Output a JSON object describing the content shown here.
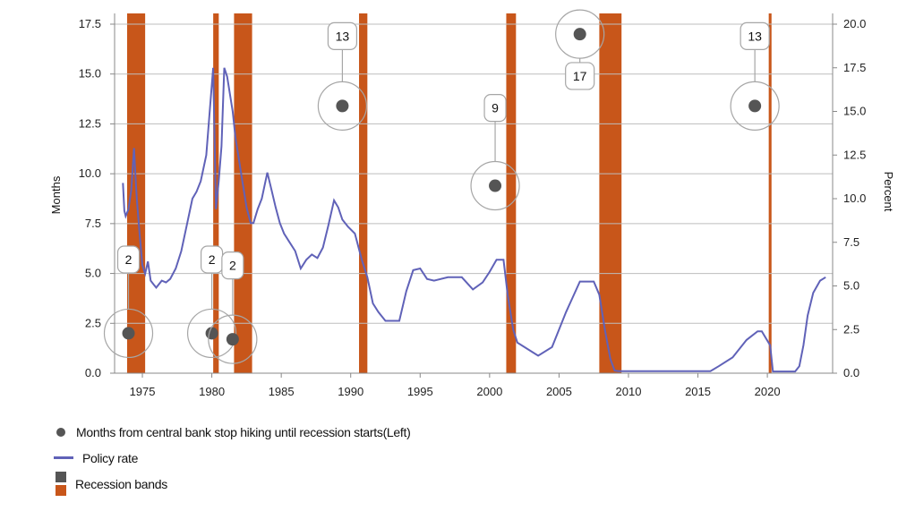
{
  "chart_data": {
    "type": "line",
    "title": "",
    "x_ticks": [
      "1975",
      "1980",
      "1985",
      "1990",
      "1995",
      "2000",
      "2005",
      "2010",
      "2015",
      "2020"
    ],
    "xlim": [
      1973.0,
      2024.7
    ],
    "ylabel_left": "Months",
    "ylim_left": [
      0,
      17.5
    ],
    "yticks_left": [
      "0.0",
      "2.5",
      "5.0",
      "7.5",
      "10.0",
      "12.5",
      "15.0",
      "17.5"
    ],
    "ylabel_right": "Percent",
    "ylim_right": [
      0,
      20
    ],
    "yticks_right": [
      "0.0",
      "2.5",
      "5.0",
      "7.5",
      "10.0",
      "12.5",
      "15.0",
      "17.5",
      "20.0"
    ],
    "grid": true,
    "legend_position": "bottom-left",
    "recession_bands": [
      {
        "start": 1973.9,
        "end": 1975.2
      },
      {
        "start": 1980.1,
        "end": 1980.5
      },
      {
        "start": 1981.6,
        "end": 1982.9
      },
      {
        "start": 1990.6,
        "end": 1991.2
      },
      {
        "start": 2001.2,
        "end": 2001.9
      },
      {
        "start": 2007.9,
        "end": 2009.5
      },
      {
        "start": 2020.1,
        "end": 2020.3
      }
    ],
    "points": [
      {
        "x": 1974.0,
        "y": 2,
        "label": "2",
        "label_y": 5.7
      },
      {
        "x": 1980.0,
        "y": 2,
        "label": "2",
        "label_y": 5.7
      },
      {
        "x": 1981.5,
        "y": 1.7,
        "label": "2",
        "label_y": 5.4
      },
      {
        "x": 1989.4,
        "y": 13.4,
        "label": "13",
        "label_y": 16.9
      },
      {
        "x": 2000.4,
        "y": 9.4,
        "label": "9",
        "label_y": 13.3
      },
      {
        "x": 2006.5,
        "y": 17.0,
        "label": "17",
        "label_y": 14.9
      },
      {
        "x": 2019.1,
        "y": 13.4,
        "label": "13",
        "label_y": 16.9
      }
    ],
    "policy_rate": {
      "x": [
        1973.6,
        1973.7,
        1973.8,
        1974.0,
        1974.2,
        1974.4,
        1974.5,
        1974.6,
        1974.8,
        1975.0,
        1975.2,
        1975.4,
        1975.6,
        1975.8,
        1976.0,
        1976.4,
        1976.7,
        1977.0,
        1977.4,
        1977.8,
        1978.2,
        1978.6,
        1978.9,
        1979.2,
        1979.6,
        1979.9,
        1980.1,
        1980.3,
        1980.5,
        1980.7,
        1980.9,
        1981.1,
        1981.3,
        1981.5,
        1981.7,
        1981.9,
        1982.2,
        1982.5,
        1982.8,
        1983.0,
        1983.3,
        1983.6,
        1984.0,
        1984.3,
        1984.6,
        1984.9,
        1985.2,
        1985.6,
        1986.0,
        1986.4,
        1986.8,
        1987.2,
        1987.6,
        1988.0,
        1988.4,
        1988.8,
        1989.1,
        1989.4,
        1989.8,
        1990.3,
        1990.8,
        1991.2,
        1991.6,
        1992.0,
        1992.5,
        1993.0,
        1993.5,
        1994.0,
        1994.5,
        1995.0,
        1995.5,
        1996.0,
        1997.0,
        1998.0,
        1998.8,
        1999.5,
        2000.0,
        2000.5,
        2001.0,
        2001.3,
        2001.7,
        2002.0,
        2003.0,
        2003.5,
        2004.5,
        2005.5,
        2006.5,
        2007.5,
        2007.9,
        2008.3,
        2008.7,
        2009.0,
        2009.3,
        2010.0,
        2012.0,
        2014.0,
        2015.9,
        2016.5,
        2017.5,
        2018.5,
        2019.3,
        2019.6,
        2019.9,
        2020.2,
        2020.4,
        2021.0,
        2022.0,
        2022.3,
        2022.6,
        2022.9,
        2023.3,
        2023.8,
        2024.2
      ],
      "y": [
        10.9,
        9.3,
        9.0,
        9.4,
        10.5,
        12.9,
        11.3,
        10.0,
        8.0,
        6.2,
        5.7,
        6.4,
        5.3,
        5.1,
        4.9,
        5.3,
        5.2,
        5.4,
        6.0,
        7.0,
        8.5,
        10.0,
        10.4,
        11.0,
        12.5,
        15.5,
        17.5,
        9.4,
        11.0,
        13.0,
        17.5,
        17.0,
        16.0,
        15.0,
        13.5,
        12.5,
        11.0,
        9.5,
        8.6,
        8.6,
        9.4,
        10.0,
        11.5,
        10.5,
        9.5,
        8.6,
        8.0,
        7.5,
        7.0,
        6.0,
        6.5,
        6.8,
        6.6,
        7.2,
        8.5,
        9.9,
        9.5,
        8.8,
        8.4,
        8.0,
        6.5,
        5.5,
        4.0,
        3.5,
        3.0,
        3.0,
        3.0,
        4.7,
        5.9,
        6.0,
        5.4,
        5.3,
        5.5,
        5.5,
        4.8,
        5.2,
        5.8,
        6.5,
        6.5,
        4.5,
        2.5,
        1.75,
        1.25,
        1.0,
        1.5,
        3.5,
        5.25,
        5.25,
        4.5,
        2.5,
        0.8,
        0.15,
        0.12,
        0.12,
        0.12,
        0.12,
        0.12,
        0.4,
        0.9,
        1.9,
        2.4,
        2.4,
        2.0,
        1.6,
        0.1,
        0.1,
        0.1,
        0.4,
        1.6,
        3.3,
        4.6,
        5.3,
        5.5
      ]
    }
  },
  "legend": {
    "dots_label": "Months from central bank stop hiking until recession starts(Left)",
    "line_label": "Policy rate",
    "bands_label": "Recession bands"
  },
  "colors": {
    "policy_line": "#6062b8",
    "recession": "#c8561a",
    "dot": "#555555",
    "callout_border": "#a6a6a6",
    "grid": "#bdbdbd"
  }
}
